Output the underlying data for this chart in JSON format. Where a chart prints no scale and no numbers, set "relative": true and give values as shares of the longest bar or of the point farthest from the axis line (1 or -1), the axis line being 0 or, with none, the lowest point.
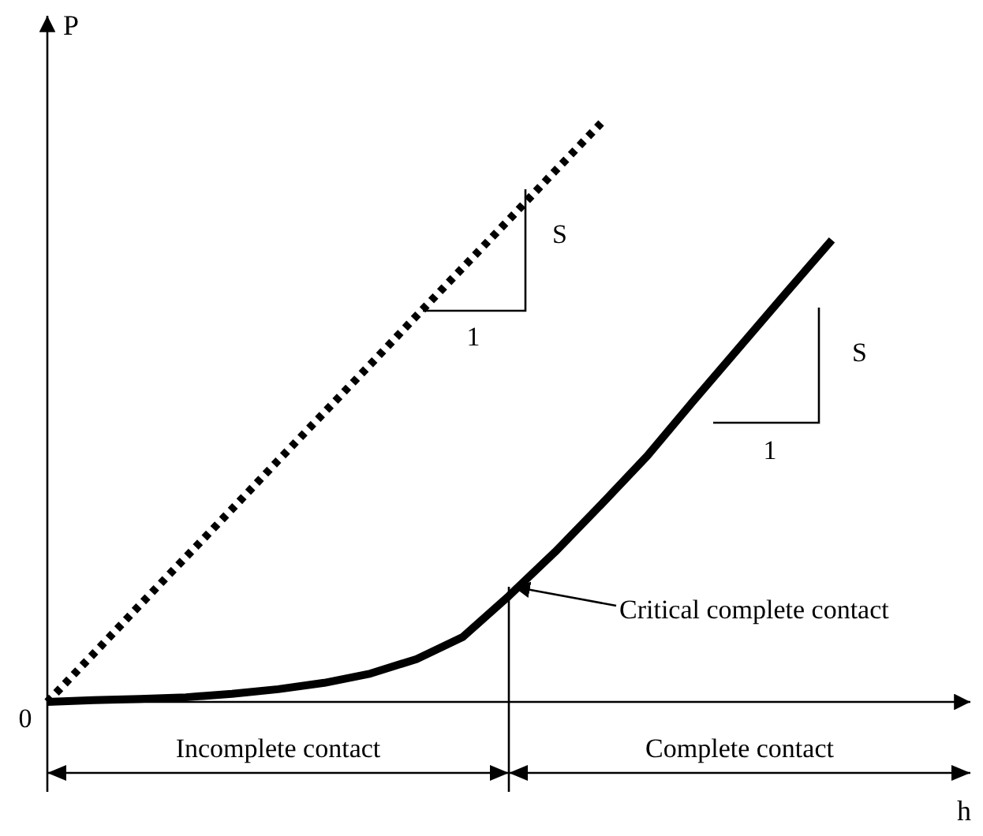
{
  "chart_data": {
    "type": "line",
    "relative": true,
    "xlabel": "h",
    "ylabel": "P",
    "categories": [
      null,
      null,
      null,
      null,
      null,
      null,
      null,
      null,
      null,
      null,
      null,
      null,
      null,
      null,
      null,
      null,
      null,
      null,
      null,
      null,
      null
    ],
    "series": [
      {
        "color": "#000000",
        "line_style": "dotted",
        "values": [
          0,
          0.083,
          0.167,
          0.25,
          0.333,
          0.417,
          0.5,
          0.583,
          0.667,
          0.75,
          0.833,
          0.917,
          1,
          null,
          null,
          null,
          null,
          null,
          null,
          null,
          null
        ]
      },
      {
        "color": "#000000",
        "line_style": "solid",
        "values": [
          0,
          0.003,
          0.005,
          0.008,
          0.014,
          0.022,
          0.033,
          0.049,
          0.074,
          0.112,
          0.183,
          0.259,
          0.341,
          0.425,
          0.52,
          0.613,
          0.706,
          0.798,
          null,
          null,
          null
        ]
      }
    ],
    "annotations": [
      "S",
      "1",
      "S",
      "1",
      "Critical complete contact",
      "Incomplete contact",
      "Complete contact",
      "0"
    ]
  }
}
